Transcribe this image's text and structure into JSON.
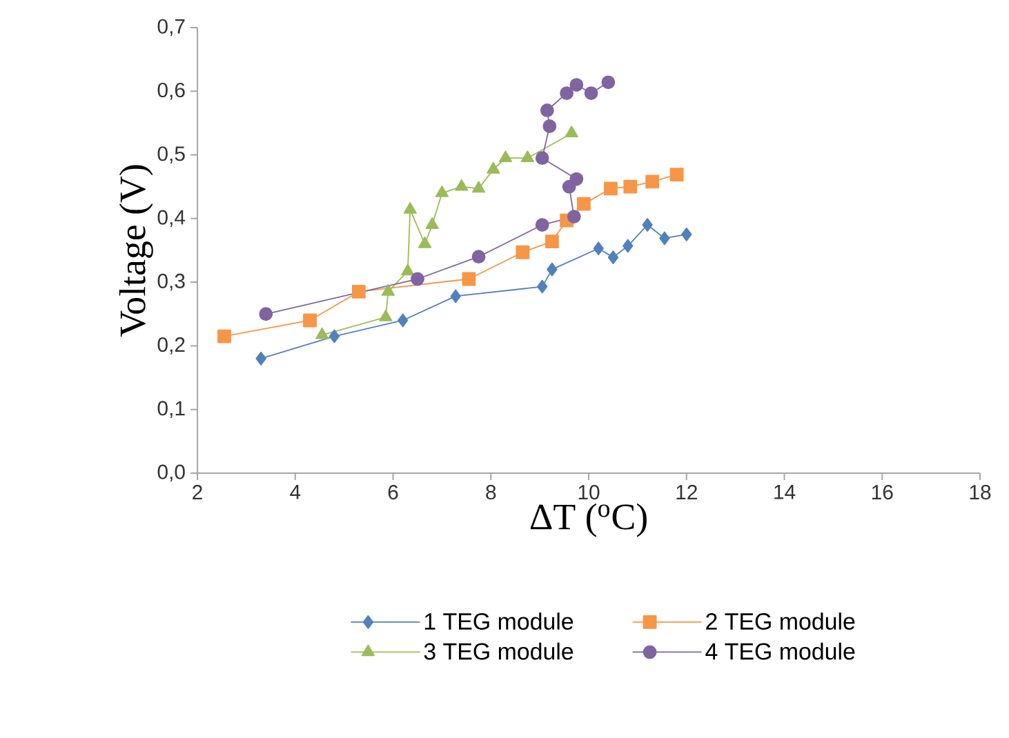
{
  "chart_data": {
    "type": "line",
    "xlabel": "ΔT ($^{o}$C)",
    "ylabel": "Voltage (V)",
    "xlim": [
      2,
      18
    ],
    "xticks": [
      2,
      4,
      6,
      8,
      10,
      12,
      14,
      16,
      18
    ],
    "ylim": [
      0,
      0.7
    ],
    "yticks": [
      {
        "value": 0,
        "label": "0,0"
      },
      {
        "value": 0.1,
        "label": "0,1"
      },
      {
        "value": 0.2,
        "label": "0,2"
      },
      {
        "value": 0.3,
        "label": "0,3"
      },
      {
        "value": 0.4,
        "label": "0,4"
      },
      {
        "value": 0.5,
        "label": "0,5"
      },
      {
        "value": 0.6,
        "label": "0,6"
      },
      {
        "value": 0.7,
        "label": "0,7"
      }
    ],
    "grid": false,
    "legend": "bottom",
    "series": [
      {
        "name": "1 TEG module",
        "color": "#4f81bd",
        "marker": "diamond",
        "x": [
          3.3,
          4.8,
          6.2,
          7.28,
          9.05,
          9.25,
          10.2,
          10.5,
          10.8,
          11.2,
          11.55,
          12.0
        ],
        "values": [
          0.18,
          0.215,
          0.24,
          0.278,
          0.293,
          0.32,
          0.353,
          0.339,
          0.357,
          0.39,
          0.369,
          0.375
        ]
      },
      {
        "name": "2 TEG module",
        "color": "#f79646",
        "marker": "square",
        "x": [
          2.55,
          4.3,
          5.3,
          7.55,
          8.65,
          9.25,
          9.55,
          9.9,
          10.45,
          10.85,
          11.3,
          11.8
        ],
        "values": [
          0.215,
          0.24,
          0.285,
          0.305,
          0.347,
          0.364,
          0.397,
          0.423,
          0.447,
          0.45,
          0.458,
          0.469
        ]
      },
      {
        "name": "3 TEG module",
        "color": "#9bbb59",
        "marker": "triangle",
        "x": [
          4.55,
          5.85,
          5.9,
          6.3,
          6.35,
          6.65,
          6.8,
          7.0,
          7.4,
          7.75,
          8.05,
          8.3,
          8.75,
          9.65
        ],
        "values": [
          0.217,
          0.245,
          0.285,
          0.317,
          0.414,
          0.36,
          0.39,
          0.44,
          0.45,
          0.447,
          0.477,
          0.495,
          0.495,
          0.534
        ]
      },
      {
        "name": "4 TEG module",
        "color": "#8064a2",
        "marker": "circle",
        "x": [
          3.4,
          6.5,
          7.75,
          9.05,
          9.7,
          9.6,
          9.75,
          9.05,
          9.2,
          9.15,
          9.55,
          9.75,
          10.05,
          10.4
        ],
        "values": [
          0.25,
          0.305,
          0.34,
          0.39,
          0.403,
          0.45,
          0.462,
          0.495,
          0.545,
          0.57,
          0.597,
          0.61,
          0.597,
          0.614
        ]
      }
    ]
  }
}
